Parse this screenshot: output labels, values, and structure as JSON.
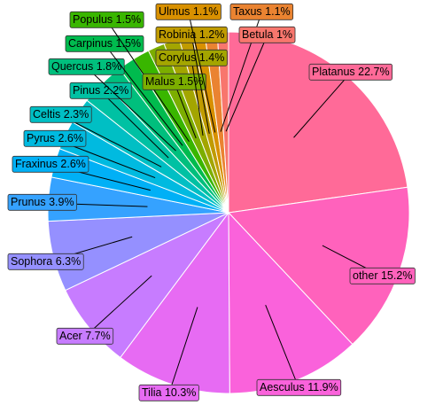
{
  "chart_data": {
    "type": "pie",
    "categories": [
      "Platanus",
      "other",
      "Aesculus",
      "Tilia",
      "Acer",
      "Sophora",
      "Prunus",
      "Fraxinus",
      "Pyrus",
      "Celtis",
      "Pinus",
      "Quercus",
      "Carpinus",
      "Populus",
      "Malus",
      "Corylus",
      "Robinia",
      "Ulmus",
      "Taxus",
      "Betula"
    ],
    "values": [
      22.7,
      15.2,
      11.9,
      10.3,
      7.7,
      6.3,
      3.9,
      2.6,
      2.6,
      2.3,
      2.2,
      1.8,
      1.5,
      1.5,
      1.5,
      1.4,
      1.2,
      1.1,
      1.1,
      1
    ],
    "value_labels": [
      "22.7%",
      "15.2%",
      "11.9%",
      "10.3%",
      "7.7%",
      "6.3%",
      "3.9%",
      "2.6%",
      "2.6%",
      "2.3%",
      "2.2%",
      "1.8%",
      "1.5%",
      "1.5%",
      "1.5%",
      "1.4%",
      "1.2%",
      "1.1%",
      "1.1%",
      "1%"
    ],
    "colors": [
      "#FF6A98",
      "#FF62BC",
      "#FA62DB",
      "#E76BF3",
      "#C77CFF",
      "#9590FF",
      "#35A2FF",
      "#00B0F6",
      "#00BAE0",
      "#00BFC4",
      "#00C1A3",
      "#00BF7D",
      "#00BB4E",
      "#39B600",
      "#7CAE00",
      "#A3A500",
      "#C09B00",
      "#D89000",
      "#EA8331",
      "#F8766D"
    ]
  }
}
